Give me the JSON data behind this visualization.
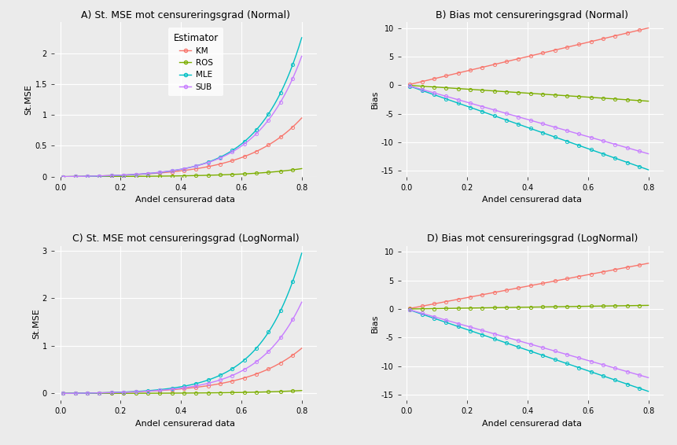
{
  "title_A": "A) St. MSE mot censureringsgrad (Normal)",
  "title_B": "B) Bias mot censureringsgrad (Normal)",
  "title_C": "C) St. MSE mot censureringsgrad (LogNormal)",
  "title_D": "D) Bias mot censureringsgrad (LogNormal)",
  "xlabel": "Andel censurerad data",
  "ylabel_mse": "St.MSE",
  "ylabel_bias": "Bias",
  "legend_title": "Estimator",
  "legend_labels": [
    "KM",
    "ROS",
    "MLE",
    "SUB"
  ],
  "colors": {
    "KM": "#F8766D",
    "ROS": "#7CAE00",
    "MLE": "#00BFC4",
    "SUB": "#C77CFF"
  },
  "background_color": "#EBEBEB",
  "grid_color": "#FFFFFF",
  "A_ylim": [
    0,
    2.5
  ],
  "A_yticks": [
    0.0,
    0.5,
    1.0,
    1.5,
    2.0
  ],
  "B_ylim": [
    -16,
    11
  ],
  "B_yticks": [
    -15,
    -10,
    -5,
    0,
    5,
    10
  ],
  "C_ylim": [
    -0.15,
    3.1
  ],
  "C_yticks": [
    0,
    1,
    2,
    3
  ],
  "D_ylim": [
    -16,
    11
  ],
  "D_yticks": [
    -15,
    -10,
    -5,
    0,
    5,
    10
  ],
  "marker_size": 3,
  "line_width": 1.0,
  "marker_every": 4,
  "A_endpoints": {
    "KM": 0.95,
    "ROS": 0.13,
    "MLE": 2.25,
    "SUB": 1.95
  },
  "B_slopes": {
    "KM": 12.5,
    "ROS": -3.5,
    "MLE": -18.5,
    "SUB": -15.0
  },
  "C_endpoints": {
    "KM": 0.95,
    "ROS": 0.06,
    "MLE": 2.95,
    "SUB": 1.92
  },
  "D_slopes": {
    "KM": 10.0,
    "ROS": 0.8,
    "MLE": -18.0,
    "SUB": -15.0
  }
}
